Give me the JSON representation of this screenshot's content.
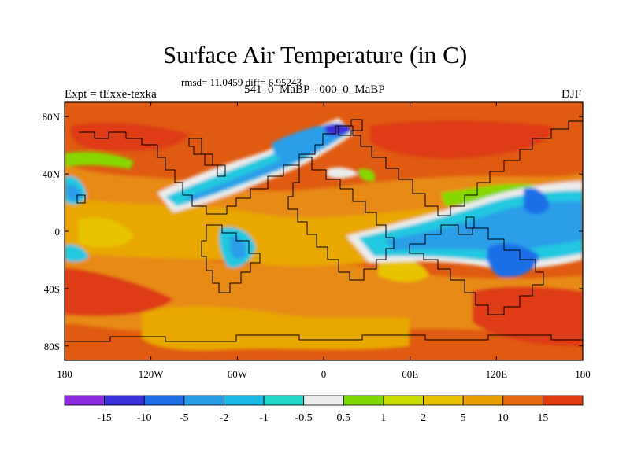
{
  "title": "Surface Air Temperature (in C)",
  "stats": "rmsd= 11.0459 diff= 6.95243",
  "experiment": "Expt = tExxe-texka",
  "period": "541_0_MaBP - 000_0_MaBP",
  "season": "DJF",
  "lat_ticks": [
    "80N",
    "40N",
    "0",
    "40S",
    "80S"
  ],
  "lon_ticks": [
    "180",
    "120W",
    "60W",
    "0",
    "60E",
    "120E",
    "180"
  ],
  "colorbar": {
    "colors": [
      "#8a2be2",
      "#3a2fd8",
      "#1e6ee6",
      "#2a9de8",
      "#19b9e6",
      "#22d6c8",
      "#ececec",
      "#7fd800",
      "#c8dc00",
      "#e6c200",
      "#e8a000",
      "#e86a10",
      "#e03c10"
    ],
    "labels": [
      "-15",
      "-10",
      "-5",
      "-2",
      "-1",
      "-0.5",
      "0.5",
      "1",
      "2",
      "5",
      "10",
      "15"
    ]
  },
  "map_colors": {
    "warm_base": "#e05a12",
    "warm_red": "#de3a12",
    "orange": "#e88a12",
    "amber": "#e8a800",
    "yellow": "#e8c400",
    "green": "#86d800",
    "white": "#ececec",
    "cyan": "#22c8e0",
    "blue": "#2a9ee8",
    "mid_blue": "#1e6ee6",
    "dark_blue": "#3a2fd8"
  }
}
